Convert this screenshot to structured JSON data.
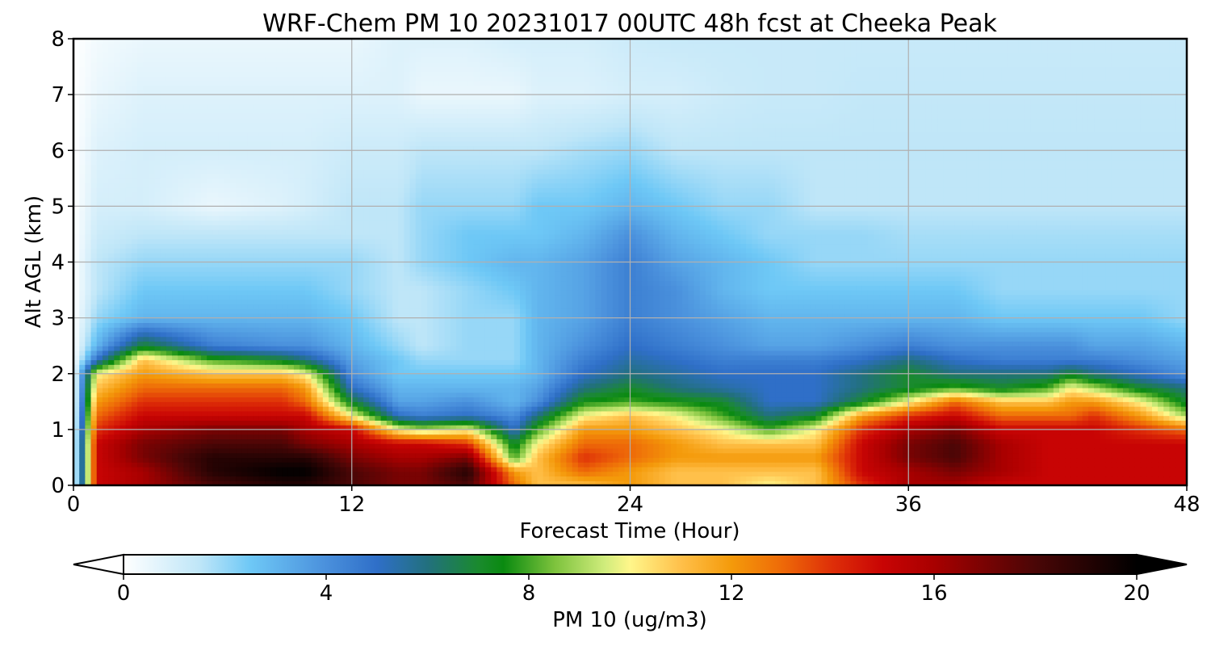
{
  "chart_data": {
    "type": "heatmap",
    "title": "WRF-Chem PM 10  20231017 00UTC 48h fcst at Cheeka Peak",
    "xlabel": "Forecast Time (Hour)",
    "ylabel": "Alt AGL (km)",
    "xlim": [
      0,
      48
    ],
    "ylim": [
      0,
      8
    ],
    "xticks": [
      "0",
      "12",
      "24",
      "36",
      "48"
    ],
    "yticks": [
      "0",
      "1",
      "2",
      "3",
      "4",
      "5",
      "6",
      "7",
      "8"
    ],
    "grid": true,
    "colorbar": {
      "label": "PM 10  (ug/m3)",
      "ticks": [
        "0",
        "4",
        "8",
        "12",
        "16",
        "20"
      ],
      "range": [
        0,
        20
      ],
      "extend": "both",
      "color_stops": [
        {
          "v": 0,
          "c": "#ffffff"
        },
        {
          "v": 1.5,
          "c": "#bfe6f8"
        },
        {
          "v": 2.5,
          "c": "#6ec8f6"
        },
        {
          "v": 4,
          "c": "#4a90dc"
        },
        {
          "v": 5,
          "c": "#2f6fc8"
        },
        {
          "v": 6,
          "c": "#22707e"
        },
        {
          "v": 7,
          "c": "#1a8a2e"
        },
        {
          "v": 7.5,
          "c": "#0a8a10"
        },
        {
          "v": 8.5,
          "c": "#7cc23c"
        },
        {
          "v": 9.5,
          "c": "#d0ec7c"
        },
        {
          "v": 10,
          "c": "#fff68a"
        },
        {
          "v": 11,
          "c": "#ffc04a"
        },
        {
          "v": 12,
          "c": "#f49a0a"
        },
        {
          "v": 13,
          "c": "#ee6a08"
        },
        {
          "v": 14,
          "c": "#de2e08"
        },
        {
          "v": 15,
          "c": "#c80404"
        },
        {
          "v": 16,
          "c": "#a80000"
        },
        {
          "v": 18,
          "c": "#4a0606"
        },
        {
          "v": 20,
          "c": "#000000"
        }
      ]
    },
    "x": [
      0,
      1,
      3,
      6,
      9,
      10,
      12,
      14,
      15,
      17,
      19,
      20,
      22,
      24,
      26,
      28,
      30,
      32,
      34,
      36,
      38,
      40,
      42,
      43,
      44,
      46,
      48
    ],
    "y": [
      0,
      0.25,
      0.5,
      0.75,
      1,
      1.25,
      1.5,
      1.75,
      2,
      2.25,
      2.5,
      3,
      3.5,
      4,
      4.5,
      5,
      6,
      7,
      8
    ],
    "values": [
      [
        0,
        15,
        16,
        18,
        19,
        19,
        18,
        17,
        17,
        18,
        13,
        11,
        11,
        12,
        11,
        11,
        10,
        11,
        14,
        16,
        16,
        15,
        15,
        15,
        15,
        15,
        15
      ],
      [
        0,
        15,
        16,
        19,
        20,
        20,
        18,
        17,
        17,
        19,
        12,
        11,
        13,
        12,
        11,
        11,
        11,
        11,
        15,
        16,
        17,
        16,
        15,
        15,
        15,
        15,
        15
      ],
      [
        0,
        15,
        17,
        19,
        19,
        19,
        17,
        16,
        16,
        17,
        8,
        11,
        14,
        13,
        12,
        12,
        12,
        12,
        15,
        17,
        18,
        16,
        15,
        15,
        15,
        15,
        15
      ],
      [
        0,
        15,
        17,
        18,
        18,
        17,
        16,
        15,
        15,
        14,
        7,
        10,
        13,
        13,
        12,
        11,
        11,
        11,
        15,
        17,
        18,
        16,
        15,
        15,
        15,
        15,
        15
      ],
      [
        0,
        14,
        16,
        17,
        17,
        16,
        15,
        10,
        9,
        10,
        5,
        8,
        12,
        12,
        11,
        10,
        8,
        10,
        14,
        16,
        17,
        15,
        15,
        15,
        15,
        14,
        13
      ],
      [
        0,
        13,
        15,
        15,
        15,
        15,
        10,
        5,
        4.5,
        5,
        4,
        6,
        10,
        11,
        10,
        8,
        6,
        7,
        12,
        14,
        15,
        13,
        13,
        13,
        14,
        12,
        9
      ],
      [
        0,
        12,
        14,
        14,
        14,
        13,
        7,
        3.5,
        3.5,
        4,
        3,
        4,
        7.5,
        8,
        7.5,
        7,
        5,
        5,
        7,
        10,
        13,
        11,
        11,
        12,
        12,
        10,
        7
      ],
      [
        0,
        11,
        13,
        13,
        13,
        12,
        5,
        3,
        3,
        3,
        3,
        3.5,
        6,
        7,
        6,
        5.5,
        5,
        5,
        6,
        7,
        8,
        7,
        8,
        10,
        9,
        7,
        6
      ],
      [
        0,
        10,
        12,
        11,
        11,
        10,
        4,
        2.5,
        2.5,
        2.5,
        2.5,
        3,
        5,
        6,
        5.5,
        5,
        5,
        5,
        6,
        7,
        6,
        6,
        6,
        7,
        6,
        5,
        4
      ],
      [
        0,
        5,
        11,
        8,
        7,
        6,
        3.5,
        2.5,
        2,
        2,
        2,
        3,
        4.5,
        5.5,
        5,
        4.5,
        4.5,
        4.5,
        5,
        6,
        5,
        4.5,
        4.5,
        4.5,
        4.5,
        4,
        3.5
      ],
      [
        0,
        3,
        7,
        4.5,
        4,
        4,
        3,
        2,
        1.5,
        2,
        2,
        3,
        4,
        5,
        4.5,
        4,
        3.5,
        3.5,
        4,
        4.5,
        4,
        4,
        4,
        4,
        3.5,
        3.5,
        3
      ],
      [
        0,
        2,
        3,
        3,
        3,
        3,
        2.5,
        1.5,
        1.5,
        2,
        2,
        3,
        3.5,
        4.5,
        4,
        3.5,
        3,
        3,
        3,
        3,
        3,
        2.5,
        2.5,
        2.5,
        2.5,
        2.5,
        2
      ],
      [
        0,
        1.5,
        2.5,
        2.5,
        2.5,
        2.5,
        2,
        1.5,
        1.5,
        2,
        2.5,
        3,
        3.5,
        4.5,
        4,
        3,
        2.5,
        2.5,
        2.5,
        2.5,
        2.5,
        2,
        2,
        2,
        2,
        2,
        2
      ],
      [
        0,
        1.5,
        2,
        2,
        2,
        2,
        2,
        1.5,
        2,
        2.5,
        3,
        3,
        3.5,
        4.5,
        3.5,
        3,
        2.5,
        2,
        2,
        2,
        2,
        2,
        2,
        2,
        2,
        2,
        2
      ],
      [
        0,
        1.2,
        1.5,
        1.5,
        1.5,
        1.5,
        1.5,
        1.5,
        2,
        2.5,
        2.5,
        2.5,
        3,
        4,
        3,
        2.5,
        2,
        2,
        2,
        1.8,
        1.8,
        1.8,
        1.8,
        1.8,
        1.8,
        1.8,
        1.8
      ],
      [
        0,
        1,
        1,
        0.5,
        0.8,
        1,
        1.5,
        1.5,
        2,
        2,
        2,
        2.5,
        2.5,
        3,
        2.5,
        2,
        2,
        1.5,
        1.5,
        1.5,
        1.5,
        1.5,
        1.5,
        1.5,
        1.5,
        1.5,
        1.5
      ],
      [
        0,
        0.8,
        1,
        1,
        1,
        1,
        1.2,
        1.2,
        1.5,
        1.5,
        1.5,
        1.5,
        1.8,
        2,
        1.5,
        1.5,
        1.5,
        1.5,
        1.5,
        1.5,
        1.5,
        1.5,
        1.5,
        1.5,
        1.5,
        1.5,
        1.5
      ],
      [
        0,
        0.5,
        0.8,
        0.8,
        0.8,
        0.8,
        0.8,
        0.8,
        0.5,
        0.5,
        0.5,
        0.8,
        0.8,
        1,
        1,
        1.2,
        1.3,
        1.3,
        1.4,
        1.4,
        1.4,
        1.4,
        1.4,
        1.4,
        1.4,
        1.4,
        1.4
      ],
      [
        0,
        0.3,
        0.5,
        0.5,
        0.5,
        0.5,
        0.5,
        0.8,
        0.8,
        0.8,
        1,
        1,
        1,
        1.2,
        1.3,
        1.3,
        1.3,
        1.3,
        1.3,
        1.3,
        1.3,
        1.3,
        1.3,
        1.3,
        1.3,
        1.3,
        1.3
      ]
    ]
  }
}
